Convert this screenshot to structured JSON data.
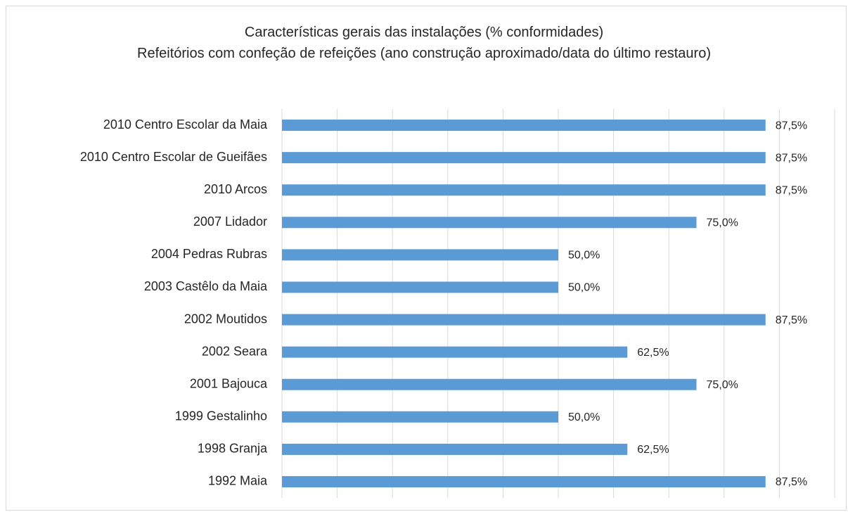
{
  "chart_data": {
    "type": "bar",
    "orientation": "horizontal",
    "title": "Características gerais das instalações (% conformidades)",
    "subtitle": "Refeitórios com confeção de refeições (ano construção aproximado/data do último restauro)",
    "categories": [
      "2010 Centro Escolar da Maia",
      "2010 Centro Escolar de Gueifães",
      "2010 Arcos",
      "2007 Lidador",
      "2004 Pedras Rubras",
      "2003 Castêlo da Maia",
      "2002 Moutidos",
      "2002 Seara",
      "2001 Bajouca",
      "1999 Gestalinho",
      "1998 Granja",
      "1992 Maia"
    ],
    "values": [
      87.5,
      87.5,
      87.5,
      75,
      50,
      50,
      87.5,
      62.5,
      75,
      50,
      62.5,
      87.5
    ],
    "value_labels": [
      "87,5%",
      "87,5%",
      "87,5%",
      "75,0%",
      "50,0%",
      "50,0%",
      "87,5%",
      "62,5%",
      "75,0%",
      "50,0%",
      "62,5%",
      "87,5%"
    ],
    "color": "#5b9bd5",
    "xlim": [
      0,
      100
    ],
    "xticks": [
      0,
      10,
      20,
      30,
      40,
      50,
      60,
      70,
      80,
      90,
      100
    ],
    "grid": true
  }
}
